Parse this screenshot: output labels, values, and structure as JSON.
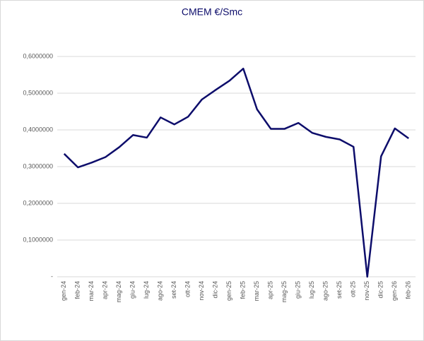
{
  "chart_data": {
    "type": "line",
    "title": "CMEM €/Smc",
    "categories": [
      "gen-24",
      "feb-24",
      "mar-24",
      "apr-24",
      "mag-24",
      "giu-24",
      "lug-24",
      "ago-24",
      "set-24",
      "ott-24",
      "nov-24",
      "dic-24",
      "gen-25",
      "feb-25",
      "mar-25",
      "apr-25",
      "mag-25",
      "giu-25",
      "lug-25",
      "ago-25",
      "set-25",
      "ott-25",
      "nov-25",
      "dic-25",
      "gen-26",
      "feb-26"
    ],
    "series": [
      {
        "name": "CMEM",
        "color": "#0d0d6b",
        "values": [
          0.335,
          0.298,
          0.311,
          0.326,
          0.353,
          0.386,
          0.379,
          0.434,
          0.415,
          0.436,
          0.483,
          0.509,
          0.534,
          0.567,
          0.456,
          0.403,
          0.403,
          0.419,
          0.392,
          0.381,
          0.374,
          0.354,
          0.0,
          0.328,
          0.404,
          0.377
        ]
      }
    ],
    "ylim": [
      0,
      0.6
    ],
    "yticks": [
      {
        "value": 0,
        "label": "-"
      },
      {
        "value": 0.1,
        "label": "0,1000000"
      },
      {
        "value": 0.2,
        "label": "0,2000000"
      },
      {
        "value": 0.3,
        "label": "0,3000000"
      },
      {
        "value": 0.4,
        "label": "0,4000000"
      },
      {
        "value": 0.5,
        "label": "0,5000000"
      },
      {
        "value": 0.6,
        "label": "0,6000000"
      }
    ],
    "grid": true
  }
}
